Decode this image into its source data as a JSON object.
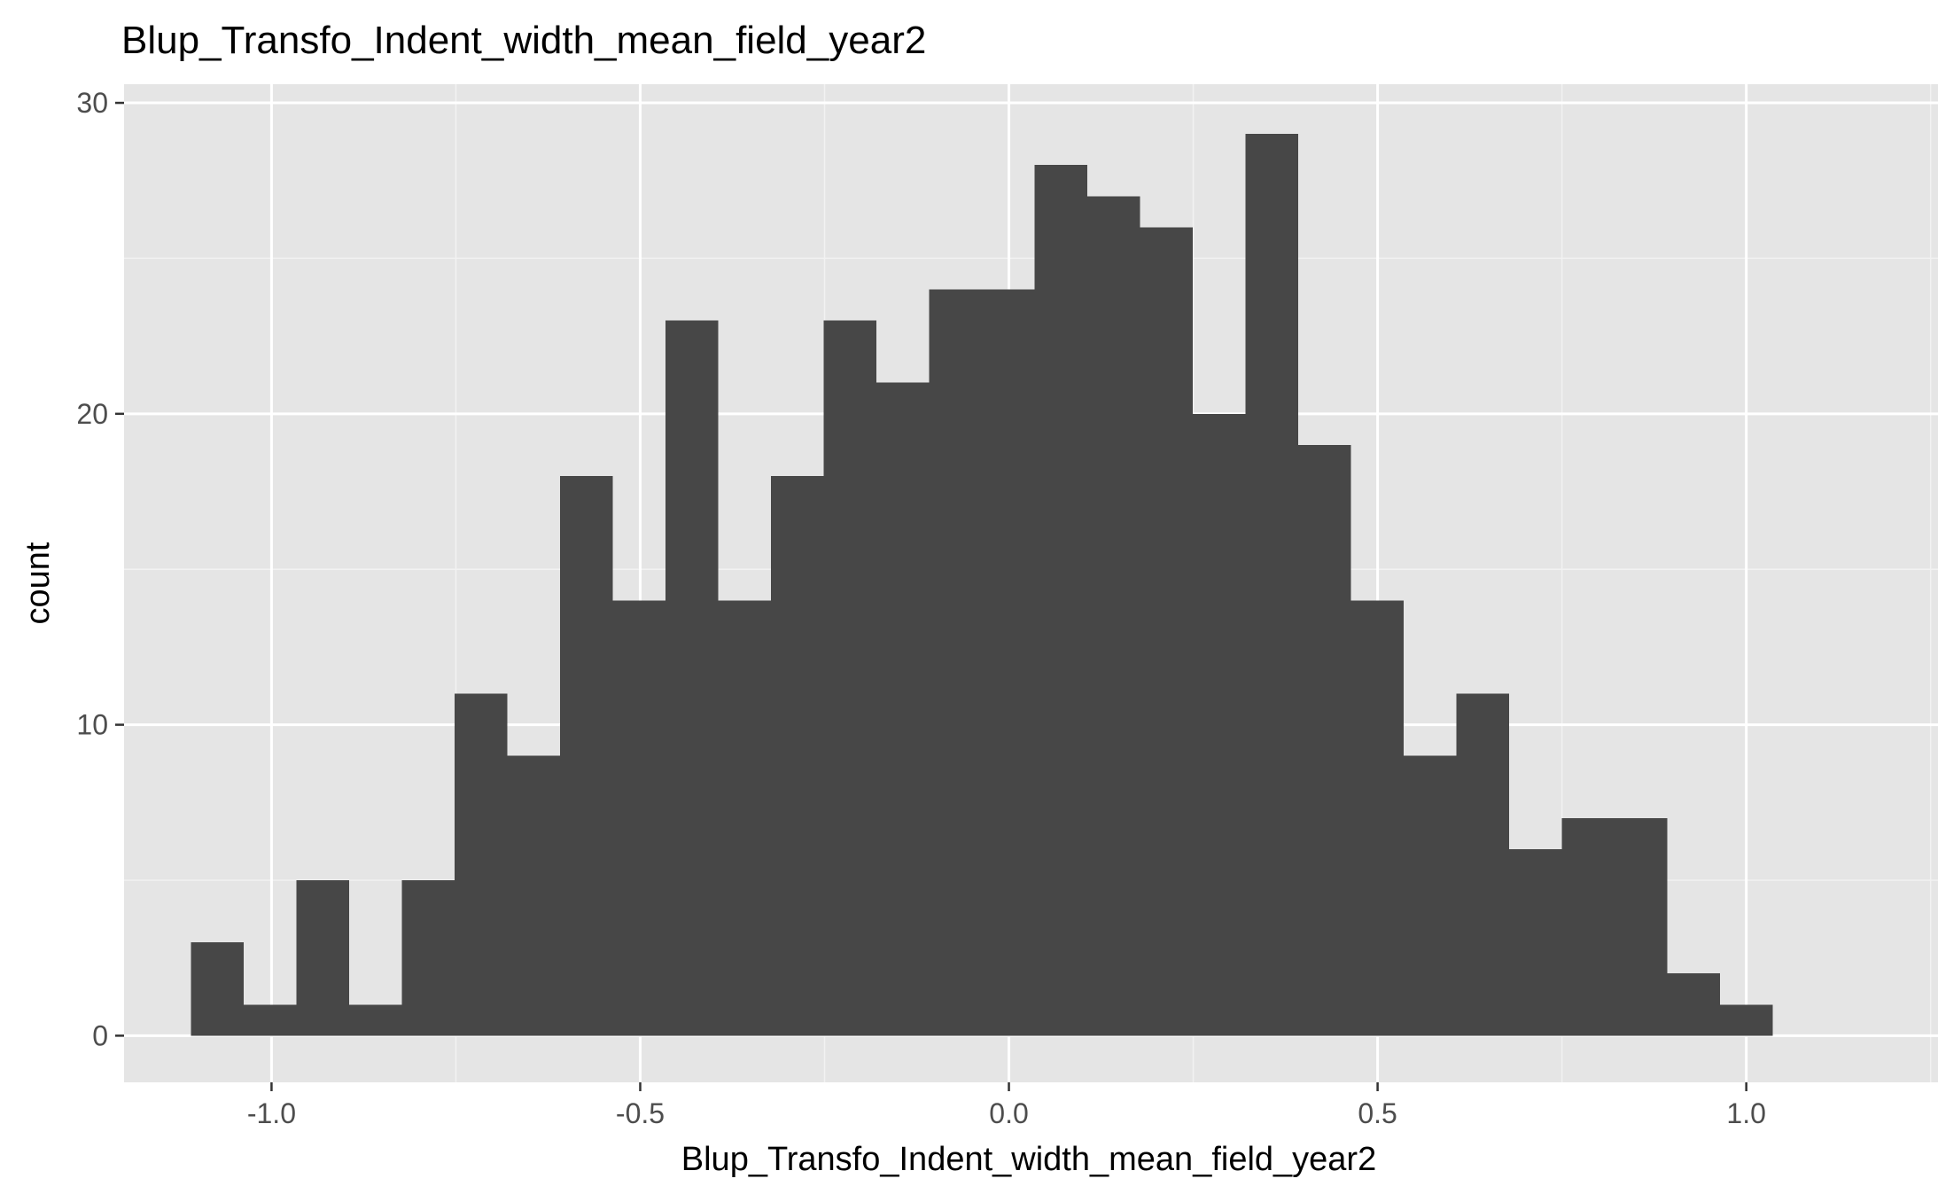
{
  "chart_data": {
    "type": "bar",
    "title": "Blup_Transfo_Indent_width_mean_field_year2",
    "xlabel": "Blup_Transfo_Indent_width_mean_field_year2",
    "ylabel": "count",
    "xlim": [
      -1.2,
      1.26
    ],
    "ylim": [
      -1.5,
      30.6
    ],
    "x_ticks": [
      -1.0,
      -0.5,
      0.0,
      0.5,
      1.0
    ],
    "x_tick_labels": [
      "-1.0",
      "-0.5",
      "0.0",
      "0.5",
      "1.0"
    ],
    "y_ticks": [
      0,
      10,
      20,
      30
    ],
    "y_tick_labels": [
      "0",
      "10",
      "20",
      "30"
    ],
    "bin_start": -1.109,
    "bin_width": 0.0715,
    "values": [
      3,
      1,
      5,
      1,
      5,
      11,
      9,
      18,
      14,
      23,
      14,
      18,
      23,
      21,
      24,
      24,
      28,
      27,
      26,
      20,
      29,
      19,
      14,
      9,
      11,
      6,
      7,
      7,
      2,
      1
    ],
    "grid": true,
    "legend": "none",
    "colors": {
      "panel_background": "#e5e5e5",
      "grid_major": "#ffffff",
      "grid_minor": "#f2f2f2",
      "bar_fill": "#474747",
      "axis_text": "#4d4d4d",
      "title_text": "#000000",
      "tick_mark": "#333333"
    }
  }
}
